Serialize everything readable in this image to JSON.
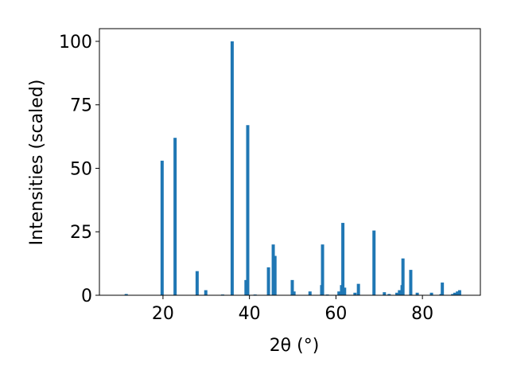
{
  "chart_data": {
    "type": "bar",
    "xlabel": "2θ (°)",
    "ylabel": "Intensities (scaled)",
    "color": "#1f77b4",
    "x": [
      11.5,
      19.8,
      22.8,
      27.9,
      29.9,
      33.8,
      36.0,
      39.2,
      39.6,
      41.3,
      44.4,
      45.5,
      45.9,
      49.9,
      50.3,
      54.0,
      56.7,
      56.9,
      58.0,
      60.7,
      61.3,
      61.6,
      62.0,
      64.4,
      65.2,
      68.8,
      71.2,
      72.3,
      74.1,
      74.7,
      75.3,
      75.5,
      77.3,
      78.8,
      82.1,
      84.3,
      84.6,
      87.0,
      87.5,
      88.1,
      88.6
    ],
    "values": [
      0.5,
      53,
      62,
      9.5,
      2,
      0.3,
      100,
      6,
      67,
      0.3,
      11,
      20,
      15.5,
      6,
      1.5,
      1.5,
      4,
      20,
      0.3,
      1.5,
      4,
      28.5,
      3,
      1,
      4.5,
      25.5,
      1.2,
      0.5,
      1,
      2,
      4,
      14.5,
      10,
      1,
      1,
      0.5,
      5,
      0.5,
      1,
      1.5,
      2
    ],
    "xlim": [
      5.3,
      93.4
    ],
    "ylim": [
      0,
      105
    ],
    "xticks": [
      20,
      40,
      60,
      80
    ],
    "yticks": [
      0,
      25,
      50,
      75,
      100
    ]
  }
}
